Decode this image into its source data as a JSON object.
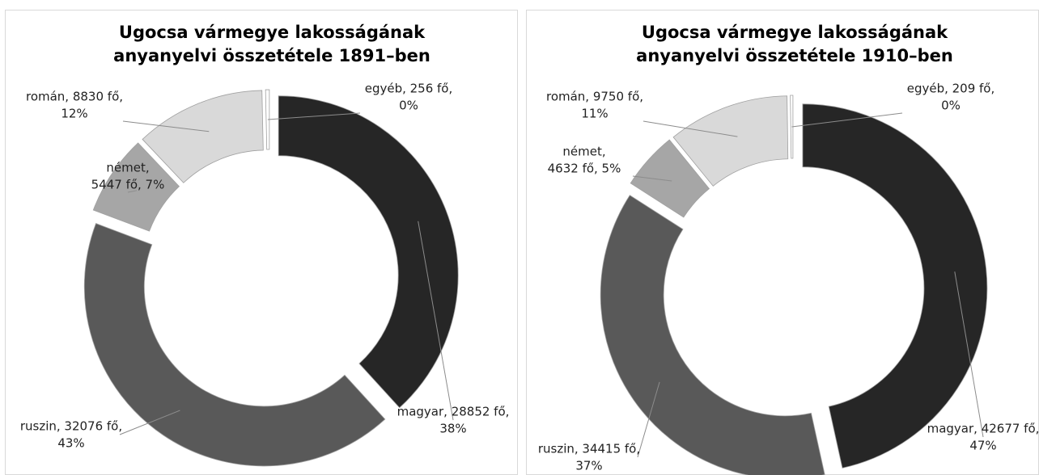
{
  "chart_data": [
    {
      "type": "donut",
      "title": "Ugocsa vármegye lakosságának anyanyelvi összetétele 1891–ben",
      "categories": [
        "magyar",
        "ruszin",
        "német",
        "román",
        "egyéb"
      ],
      "values": [
        28852,
        32076,
        5447,
        8830,
        256
      ],
      "value_labels": [
        [
          "magyar, 28852 fő,",
          "38%"
        ],
        [
          "ruszin, 32076 fő,",
          "43%"
        ],
        [
          "német,",
          "5447 fő, 7%"
        ],
        [
          "román, 8830 fő,",
          "12%"
        ],
        [
          "egyéb, 256 fő,",
          "0%"
        ]
      ],
      "colors": [
        "#262626",
        "#595959",
        "#a6a6a6",
        "#d9d9d9",
        "#ffffff"
      ]
    },
    {
      "type": "donut",
      "title": "Ugocsa vármegye lakosságának anyanyelvi összetétele 1910–ben",
      "categories": [
        "magyar",
        "ruszin",
        "német",
        "román",
        "egyéb"
      ],
      "values": [
        42677,
        34415,
        4632,
        9750,
        209
      ],
      "value_labels": [
        [
          "magyar, 42677 fő,",
          "47%"
        ],
        [
          "ruszin, 34415 fő,",
          "37%"
        ],
        [
          "német,",
          "4632 fő, 5%"
        ],
        [
          "román, 9750 fő,",
          "11%"
        ],
        [
          "egyéb, 209 fő,",
          "0%"
        ]
      ],
      "colors": [
        "#262626",
        "#595959",
        "#a6a6a6",
        "#d9d9d9",
        "#ffffff"
      ]
    }
  ]
}
